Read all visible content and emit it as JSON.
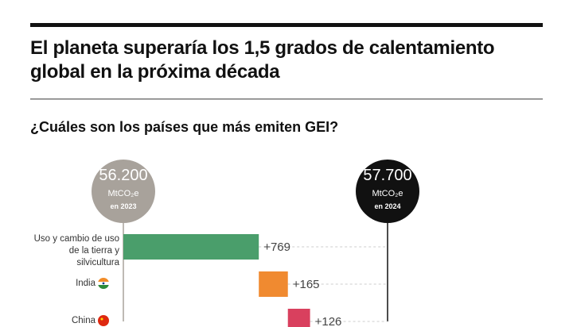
{
  "chart_data": {
    "type": "waterfall",
    "title": "El planeta superaría los 1,5 grados de calentamiento global en la próxima década",
    "subtitle": "¿Cuáles son los países que más emiten GEI?",
    "start": {
      "value": 56200,
      "label": "56.200",
      "unit": "MtCO₂e",
      "period": "en 2023",
      "color": "#a8a29b"
    },
    "end": {
      "value": 57700,
      "label": "57.700",
      "unit": "MtCO₂e",
      "period": "en 2024",
      "color": "#111111"
    },
    "categories": [
      "Uso y cambio de uso de la tierra y silvicultura",
      "India",
      "China"
    ],
    "values": [
      769,
      165,
      126
    ],
    "value_labels": [
      "+769",
      "+165",
      "+126"
    ],
    "colors": [
      "#4a9e6b",
      "#f08a30",
      "#d9405e"
    ]
  }
}
